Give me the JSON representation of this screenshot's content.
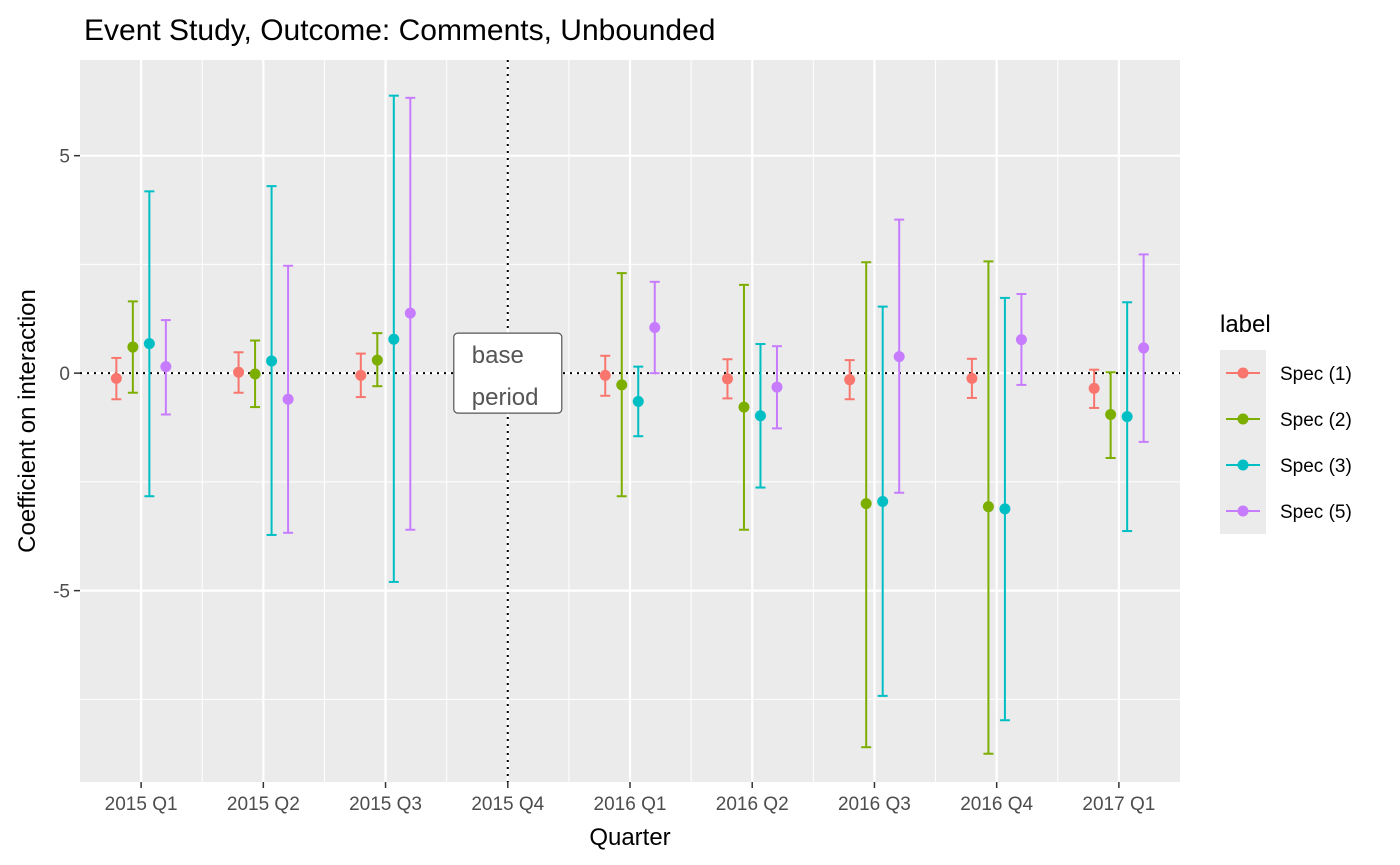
{
  "chart_data": {
    "type": "errorbar",
    "title": "Event Study, Outcome: Comments, Unbounded",
    "xlabel": "Quarter",
    "ylabel": "Coefficient on interaction",
    "categories": [
      "2015 Q1",
      "2015 Q2",
      "2015 Q3",
      "2015 Q4",
      "2016 Q1",
      "2016 Q2",
      "2016 Q3",
      "2016 Q4",
      "2017 Q1"
    ],
    "y_ticks": [
      {
        "value": 5,
        "label": "5"
      },
      {
        "value": 0,
        "label": "0"
      },
      {
        "value": -5,
        "label": "-5"
      }
    ],
    "ylim": [
      -9.4,
      7.2
    ],
    "grid": true,
    "reference_lines": {
      "y": 0,
      "x_category": "2015 Q4",
      "style": "dotted"
    },
    "annotation": {
      "category": "2015 Q4",
      "lines": [
        "base",
        "period"
      ]
    },
    "legend": {
      "title": "label",
      "position": "right"
    },
    "series": [
      {
        "name": "Spec (1)",
        "color": "#F8766D",
        "points": [
          {
            "category": "2015 Q1",
            "estimate": -0.12,
            "lower": -0.6,
            "upper": 0.35
          },
          {
            "category": "2015 Q2",
            "estimate": 0.02,
            "lower": -0.45,
            "upper": 0.48
          },
          {
            "category": "2015 Q3",
            "estimate": -0.05,
            "lower": -0.55,
            "upper": 0.45
          },
          {
            "category": "2016 Q1",
            "estimate": -0.05,
            "lower": -0.52,
            "upper": 0.4
          },
          {
            "category": "2016 Q2",
            "estimate": -0.13,
            "lower": -0.58,
            "upper": 0.32
          },
          {
            "category": "2016 Q3",
            "estimate": -0.15,
            "lower": -0.6,
            "upper": 0.3
          },
          {
            "category": "2016 Q4",
            "estimate": -0.12,
            "lower": -0.57,
            "upper": 0.33
          },
          {
            "category": "2017 Q1",
            "estimate": -0.35,
            "lower": -0.8,
            "upper": 0.08
          }
        ]
      },
      {
        "name": "Spec (2)",
        "color": "#7CAE00",
        "points": [
          {
            "category": "2015 Q1",
            "estimate": 0.6,
            "lower": -0.45,
            "upper": 1.65
          },
          {
            "category": "2015 Q2",
            "estimate": -0.02,
            "lower": -0.78,
            "upper": 0.75
          },
          {
            "category": "2015 Q3",
            "estimate": 0.3,
            "lower": -0.3,
            "upper": 0.92
          },
          {
            "category": "2016 Q1",
            "estimate": -0.27,
            "lower": -2.83,
            "upper": 2.3
          },
          {
            "category": "2016 Q2",
            "estimate": -0.78,
            "lower": -3.6,
            "upper": 2.03
          },
          {
            "category": "2016 Q3",
            "estimate": -3.0,
            "lower": -8.6,
            "upper": 2.55
          },
          {
            "category": "2016 Q4",
            "estimate": -3.07,
            "lower": -8.75,
            "upper": 2.57
          },
          {
            "category": "2017 Q1",
            "estimate": -0.95,
            "lower": -1.95,
            "upper": 0.02
          }
        ]
      },
      {
        "name": "Spec (3)",
        "color": "#00BFC4",
        "points": [
          {
            "category": "2015 Q1",
            "estimate": 0.68,
            "lower": -2.83,
            "upper": 4.18
          },
          {
            "category": "2015 Q2",
            "estimate": 0.28,
            "lower": -3.72,
            "upper": 4.3
          },
          {
            "category": "2015 Q3",
            "estimate": 0.78,
            "lower": -4.8,
            "upper": 6.38
          },
          {
            "category": "2016 Q1",
            "estimate": -0.65,
            "lower": -1.45,
            "upper": 0.15
          },
          {
            "category": "2016 Q2",
            "estimate": -0.98,
            "lower": -2.63,
            "upper": 0.67
          },
          {
            "category": "2016 Q3",
            "estimate": -2.95,
            "lower": -7.42,
            "upper": 1.53
          },
          {
            "category": "2016 Q4",
            "estimate": -3.12,
            "lower": -7.98,
            "upper": 1.73
          },
          {
            "category": "2017 Q1",
            "estimate": -1.0,
            "lower": -3.63,
            "upper": 1.63
          }
        ]
      },
      {
        "name": "Spec (5)",
        "color": "#C77CFF",
        "points": [
          {
            "category": "2015 Q1",
            "estimate": 0.15,
            "lower": -0.95,
            "upper": 1.22
          },
          {
            "category": "2015 Q2",
            "estimate": -0.6,
            "lower": -3.67,
            "upper": 2.47
          },
          {
            "category": "2015 Q3",
            "estimate": 1.38,
            "lower": -3.6,
            "upper": 6.33
          },
          {
            "category": "2016 Q1",
            "estimate": 1.05,
            "lower": 0.0,
            "upper": 2.1
          },
          {
            "category": "2016 Q2",
            "estimate": -0.32,
            "lower": -1.27,
            "upper": 0.62
          },
          {
            "category": "2016 Q3",
            "estimate": 0.38,
            "lower": -2.75,
            "upper": 3.53
          },
          {
            "category": "2016 Q4",
            "estimate": 0.77,
            "lower": -0.27,
            "upper": 1.82
          },
          {
            "category": "2017 Q1",
            "estimate": 0.58,
            "lower": -1.58,
            "upper": 2.73
          }
        ]
      }
    ]
  }
}
